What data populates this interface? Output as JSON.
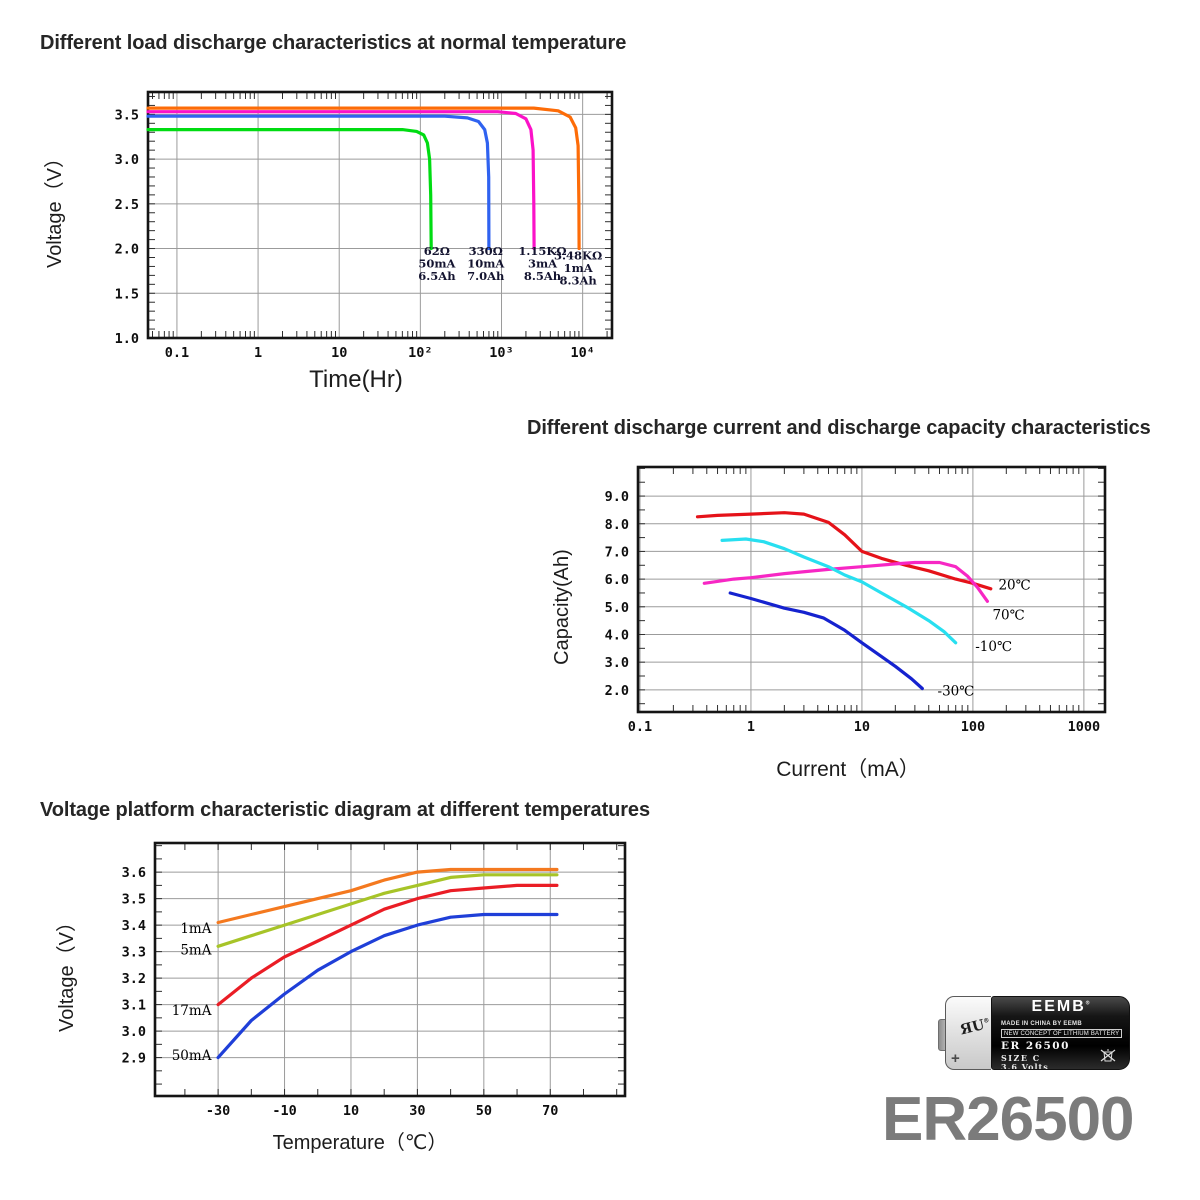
{
  "battery": {
    "brand": "EEMB",
    "brand_mark": "®",
    "made_in": "MADE IN CHINA BY EEMB",
    "slogan": "NEW CONCEPT OF LITHIUM BATTERY",
    "model_label": "ER 26500",
    "size_label": "SIZE C",
    "voltage_label": "3.6 Volts",
    "ul_mark": "ЯU",
    "ul_mark_reg": "®",
    "plus_sign": "+",
    "model_big": "ER26500"
  },
  "chart_data": [
    {
      "type": "line",
      "title": "Different load discharge characteristics at normal temperature",
      "xlabel": "Time(Hr)",
      "ylabel": "Voltage（V）",
      "x_scale": "log",
      "x_range": [
        0.044,
        23000
      ],
      "y_range": [
        1.0,
        3.75
      ],
      "grid_color": "#9b9b9b",
      "x_ticks": [
        {
          "v": 0.1,
          "label": "0.1"
        },
        {
          "v": 1,
          "label": "1"
        },
        {
          "v": 10,
          "label": "10"
        },
        {
          "v": 100,
          "label": "10²"
        },
        {
          "v": 1000,
          "label": "10³"
        },
        {
          "v": 10000,
          "label": "10⁴"
        }
      ],
      "y_ticks": [
        {
          "v": 1.0,
          "label": "1.0"
        },
        {
          "v": 1.5,
          "label": "1.5"
        },
        {
          "v": 2.0,
          "label": "2.0"
        },
        {
          "v": 2.5,
          "label": "2.5"
        },
        {
          "v": 3.0,
          "label": "3.0"
        },
        {
          "v": 3.5,
          "label": "3.5"
        }
      ],
      "y_grid": [
        1.5,
        2.0,
        2.5,
        3.0,
        3.5
      ],
      "y_minor": 0.1,
      "series": [
        {
          "name": "62ohm-50mA",
          "color": "#00dc12",
          "points": [
            [
              0.044,
              3.33
            ],
            [
              60,
              3.33
            ],
            [
              90,
              3.31
            ],
            [
              110,
              3.27
            ],
            [
              122,
              3.18
            ],
            [
              130,
              3.0
            ],
            [
              134,
              2.6
            ],
            [
              136,
              2.0
            ]
          ]
        },
        {
          "name": "330ohm-10mA",
          "color": "#2f62f0",
          "points": [
            [
              0.044,
              3.48
            ],
            [
              200,
              3.48
            ],
            [
              380,
              3.46
            ],
            [
              520,
              3.42
            ],
            [
              620,
              3.33
            ],
            [
              670,
              3.18
            ],
            [
              695,
              2.8
            ],
            [
              700,
              2.0
            ]
          ]
        },
        {
          "name": "1.15kohm-3mA",
          "color": "#fb12c8",
          "points": [
            [
              0.044,
              3.53
            ],
            [
              900,
              3.53
            ],
            [
              1500,
              3.51
            ],
            [
              2000,
              3.45
            ],
            [
              2300,
              3.33
            ],
            [
              2450,
              3.1
            ],
            [
              2500,
              2.5
            ],
            [
              2520,
              2.0
            ]
          ]
        },
        {
          "name": "3.48kohm-1mA",
          "color": "#fd6c08",
          "points": [
            [
              0.044,
              3.57
            ],
            [
              2500,
              3.57
            ],
            [
              5000,
              3.54
            ],
            [
              7000,
              3.47
            ],
            [
              8200,
              3.35
            ],
            [
              8800,
              3.15
            ],
            [
              9000,
              2.5
            ],
            [
              9050,
              2.0
            ]
          ]
        }
      ],
      "annotations": [
        {
          "lines": [
            "62Ω",
            "50mA",
            "6.5Ah"
          ],
          "x": 160,
          "y": 1.93,
          "anchor": "middle"
        },
        {
          "lines": [
            "330Ω",
            "10mA",
            "7.0Ah"
          ],
          "x": 640,
          "y": 1.93,
          "anchor": "middle"
        },
        {
          "lines": [
            "1.15KΩ",
            "3mA",
            "8.5Ah"
          ],
          "x": 3200,
          "y": 1.93,
          "anchor": "middle"
        },
        {
          "lines": [
            "3.48KΩ",
            "1mA",
            "8.3Ah"
          ],
          "x": 8800,
          "y": 1.88,
          "anchor": "middle"
        }
      ]
    },
    {
      "type": "line",
      "title": "Different discharge current and discharge capacity characteristics",
      "xlabel": "Current（mA）",
      "ylabel": "Capacity(Ah)",
      "x_scale": "log",
      "x_range": [
        0.096,
        1550
      ],
      "y_range": [
        1.2,
        10.05
      ],
      "grid_color": "#9b9b9b",
      "x_ticks": [
        {
          "v": 0.1,
          "label": "0.1"
        },
        {
          "v": 1,
          "label": "1"
        },
        {
          "v": 10,
          "label": "10"
        },
        {
          "v": 100,
          "label": "100"
        },
        {
          "v": 1000,
          "label": "1000"
        }
      ],
      "y_ticks": [
        {
          "v": 2.0,
          "label": "2.0"
        },
        {
          "v": 3.0,
          "label": "3.0"
        },
        {
          "v": 4.0,
          "label": "4.0"
        },
        {
          "v": 5.0,
          "label": "5.0"
        },
        {
          "v": 6.0,
          "label": "6.0"
        },
        {
          "v": 7.0,
          "label": "7.0"
        },
        {
          "v": 8.0,
          "label": "8.0"
        },
        {
          "v": 9.0,
          "label": "9.0"
        }
      ],
      "y_minor": 0.5,
      "series": [
        {
          "name": "20C",
          "color": "#e51219",
          "points": [
            [
              0.33,
              8.25
            ],
            [
              0.5,
              8.3
            ],
            [
              1,
              8.35
            ],
            [
              2,
              8.4
            ],
            [
              3,
              8.35
            ],
            [
              5,
              8.05
            ],
            [
              7,
              7.6
            ],
            [
              10,
              7.0
            ],
            [
              15,
              6.75
            ],
            [
              25,
              6.5
            ],
            [
              40,
              6.3
            ],
            [
              70,
              6.0
            ],
            [
              100,
              5.85
            ],
            [
              145,
              5.65
            ]
          ]
        },
        {
          "name": "70C",
          "color": "#f727c4",
          "points": [
            [
              0.38,
              5.85
            ],
            [
              0.7,
              6.0
            ],
            [
              1,
              6.05
            ],
            [
              2,
              6.2
            ],
            [
              5,
              6.35
            ],
            [
              10,
              6.45
            ],
            [
              20,
              6.55
            ],
            [
              30,
              6.6
            ],
            [
              50,
              6.6
            ],
            [
              70,
              6.45
            ],
            [
              90,
              6.1
            ],
            [
              110,
              5.7
            ],
            [
              135,
              5.2
            ]
          ]
        },
        {
          "name": "-10C",
          "color": "#28dff0",
          "points": [
            [
              0.55,
              7.4
            ],
            [
              0.9,
              7.45
            ],
            [
              1.3,
              7.35
            ],
            [
              2,
              7.1
            ],
            [
              3,
              6.8
            ],
            [
              5,
              6.45
            ],
            [
              7,
              6.15
            ],
            [
              10,
              5.9
            ],
            [
              15,
              5.5
            ],
            [
              25,
              5.0
            ],
            [
              40,
              4.5
            ],
            [
              55,
              4.1
            ],
            [
              70,
              3.7
            ]
          ]
        },
        {
          "name": "-30C",
          "color": "#1522cf",
          "points": [
            [
              0.65,
              5.5
            ],
            [
              1,
              5.3
            ],
            [
              2,
              4.95
            ],
            [
              3,
              4.8
            ],
            [
              4.5,
              4.6
            ],
            [
              7,
              4.15
            ],
            [
              10,
              3.7
            ],
            [
              15,
              3.2
            ],
            [
              20,
              2.85
            ],
            [
              28,
              2.4
            ],
            [
              35,
              2.05
            ]
          ]
        }
      ],
      "annotations": [
        {
          "lines": [
            "20℃"
          ],
          "x": 170,
          "y": 5.62,
          "anchor": "start"
        },
        {
          "lines": [
            "70℃"
          ],
          "x": 150,
          "y": 4.55,
          "anchor": "start"
        },
        {
          "lines": [
            "-10℃"
          ],
          "x": 105,
          "y": 3.4,
          "anchor": "start"
        },
        {
          "lines": [
            "-30℃"
          ],
          "x": 48,
          "y": 1.8,
          "anchor": "start"
        }
      ]
    },
    {
      "type": "line",
      "title": "Voltage platform characteristic diagram at different temperatures",
      "xlabel": "Temperature（℃）",
      "ylabel": "Voltage（V）",
      "x_scale": "linear",
      "x_range": [
        -49,
        92.5
      ],
      "y_range": [
        2.755,
        3.71
      ],
      "grid_color": "#9b9b9b",
      "x_minor": 10,
      "x_ticks": [
        {
          "v": -30,
          "label": "-30"
        },
        {
          "v": -10,
          "label": "-10"
        },
        {
          "v": 10,
          "label": "10"
        },
        {
          "v": 30,
          "label": "30"
        },
        {
          "v": 50,
          "label": "50"
        },
        {
          "v": 70,
          "label": "70"
        }
      ],
      "y_ticks": [
        {
          "v": 2.9,
          "label": "2.9"
        },
        {
          "v": 3.0,
          "label": "3.0"
        },
        {
          "v": 3.1,
          "label": "3.1"
        },
        {
          "v": 3.2,
          "label": "3.2"
        },
        {
          "v": 3.3,
          "label": "3.3"
        },
        {
          "v": 3.4,
          "label": "3.4"
        },
        {
          "v": 3.5,
          "label": "3.5"
        },
        {
          "v": 3.6,
          "label": "3.6"
        }
      ],
      "y_minor": 0.05,
      "series": [
        {
          "name": "1mA",
          "color": "#f4791f",
          "points": [
            [
              -30,
              3.41
            ],
            [
              -20,
              3.44
            ],
            [
              -10,
              3.47
            ],
            [
              0,
              3.5
            ],
            [
              10,
              3.53
            ],
            [
              20,
              3.57
            ],
            [
              30,
              3.6
            ],
            [
              40,
              3.61
            ],
            [
              50,
              3.61
            ],
            [
              60,
              3.61
            ],
            [
              72,
              3.61
            ]
          ]
        },
        {
          "name": "5mA",
          "color": "#a7c428",
          "points": [
            [
              -30,
              3.32
            ],
            [
              -20,
              3.36
            ],
            [
              -10,
              3.4
            ],
            [
              0,
              3.44
            ],
            [
              10,
              3.48
            ],
            [
              20,
              3.52
            ],
            [
              30,
              3.55
            ],
            [
              40,
              3.58
            ],
            [
              50,
              3.59
            ],
            [
              60,
              3.59
            ],
            [
              72,
              3.59
            ]
          ]
        },
        {
          "name": "17mA",
          "color": "#ea1d25",
          "points": [
            [
              -30,
              3.1
            ],
            [
              -20,
              3.2
            ],
            [
              -10,
              3.28
            ],
            [
              0,
              3.34
            ],
            [
              10,
              3.4
            ],
            [
              20,
              3.46
            ],
            [
              30,
              3.5
            ],
            [
              40,
              3.53
            ],
            [
              50,
              3.54
            ],
            [
              60,
              3.55
            ],
            [
              72,
              3.55
            ]
          ]
        },
        {
          "name": "50mA",
          "color": "#1f3fd8",
          "points": [
            [
              -30,
              2.9
            ],
            [
              -20,
              3.04
            ],
            [
              -10,
              3.14
            ],
            [
              0,
              3.23
            ],
            [
              10,
              3.3
            ],
            [
              20,
              3.36
            ],
            [
              30,
              3.4
            ],
            [
              40,
              3.43
            ],
            [
              50,
              3.44
            ],
            [
              60,
              3.44
            ],
            [
              72,
              3.44
            ]
          ]
        }
      ],
      "annotations": [
        {
          "lines": [
            "1mA"
          ],
          "x": -32,
          "y": 3.37,
          "anchor": "end"
        },
        {
          "lines": [
            "5mA"
          ],
          "x": -32,
          "y": 3.29,
          "anchor": "end"
        },
        {
          "lines": [
            "17mA"
          ],
          "x": -32,
          "y": 3.06,
          "anchor": "end"
        },
        {
          "lines": [
            "50mA"
          ],
          "x": -32,
          "y": 2.89,
          "anchor": "end"
        }
      ]
    }
  ]
}
